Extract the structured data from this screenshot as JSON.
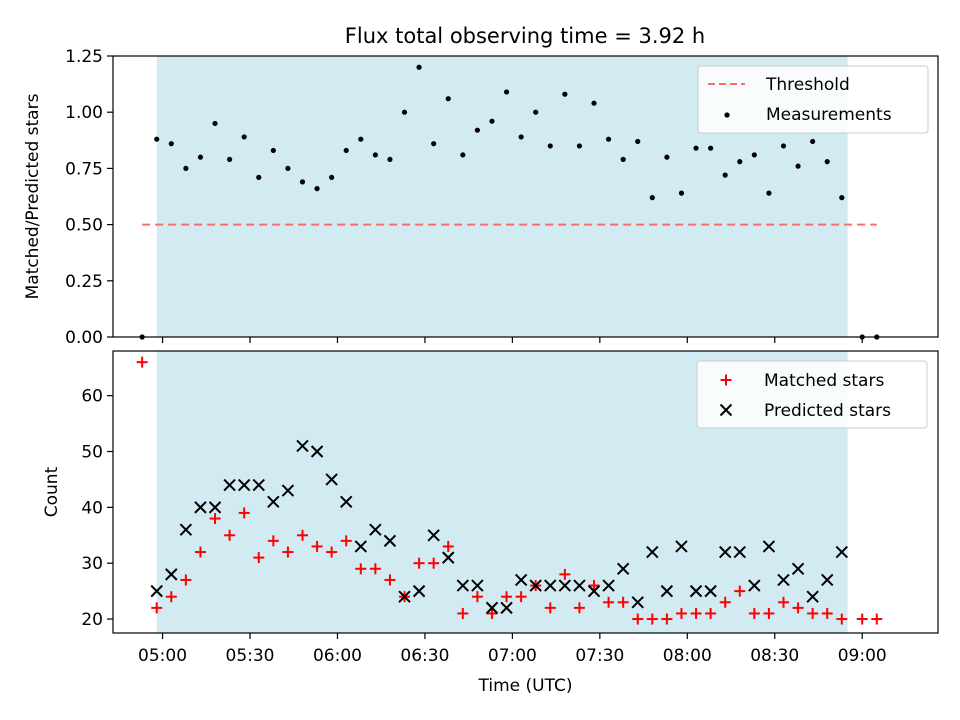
{
  "figure": {
    "title": "Flux total observing time = 3.92 h",
    "xlabel": "Time (UTC)"
  },
  "colors": {
    "shade": "#add8e6",
    "threshold": "#ff6b6b",
    "measurements": "#000000",
    "matched": "#ff0000",
    "predicted": "#000000"
  },
  "chart_data": [
    {
      "type": "scatter",
      "ylabel": "Matched/Predicted stars",
      "ylim": [
        0,
        1.25
      ],
      "xlim": [
        "04:43",
        "09:26"
      ],
      "yticks": [
        "0.00",
        "0.25",
        "0.50",
        "0.75",
        "1.00",
        "1.25"
      ],
      "shaded_interval": [
        "04:58",
        "08:55"
      ],
      "legend_position": "top-right",
      "threshold": {
        "name": "Threshold",
        "value": 0.5,
        "x_range": [
          "04:53",
          "09:05"
        ]
      },
      "series": [
        {
          "name": "Measurements",
          "points": [
            [
              "04:53",
              0.0
            ],
            [
              "04:58",
              0.88
            ],
            [
              "05:03",
              0.86
            ],
            [
              "05:08",
              0.75
            ],
            [
              "05:13",
              0.8
            ],
            [
              "05:18",
              0.95
            ],
            [
              "05:23",
              0.79
            ],
            [
              "05:28",
              0.89
            ],
            [
              "05:33",
              0.71
            ],
            [
              "05:38",
              0.83
            ],
            [
              "05:43",
              0.75
            ],
            [
              "05:48",
              0.69
            ],
            [
              "05:53",
              0.66
            ],
            [
              "05:58",
              0.71
            ],
            [
              "06:03",
              0.83
            ],
            [
              "06:08",
              0.88
            ],
            [
              "06:13",
              0.81
            ],
            [
              "06:18",
              0.79
            ],
            [
              "06:23",
              1.0
            ],
            [
              "06:28",
              1.2
            ],
            [
              "06:33",
              0.86
            ],
            [
              "06:38",
              1.06
            ],
            [
              "06:43",
              0.81
            ],
            [
              "06:48",
              0.92
            ],
            [
              "06:53",
              0.96
            ],
            [
              "06:58",
              1.09
            ],
            [
              "07:03",
              0.89
            ],
            [
              "07:08",
              1.0
            ],
            [
              "07:13",
              0.85
            ],
            [
              "07:18",
              1.08
            ],
            [
              "07:23",
              0.85
            ],
            [
              "07:28",
              1.04
            ],
            [
              "07:33",
              0.88
            ],
            [
              "07:38",
              0.79
            ],
            [
              "07:43",
              0.87
            ],
            [
              "07:48",
              0.62
            ],
            [
              "07:53",
              0.8
            ],
            [
              "07:58",
              0.64
            ],
            [
              "08:03",
              0.84
            ],
            [
              "08:08",
              0.84
            ],
            [
              "08:13",
              0.72
            ],
            [
              "08:18",
              0.78
            ],
            [
              "08:23",
              0.81
            ],
            [
              "08:28",
              0.64
            ],
            [
              "08:33",
              0.85
            ],
            [
              "08:38",
              0.76
            ],
            [
              "08:43",
              0.87
            ],
            [
              "08:48",
              0.78
            ],
            [
              "08:53",
              0.62
            ],
            [
              "09:00",
              0.0
            ],
            [
              "09:05",
              0.0
            ]
          ]
        }
      ]
    },
    {
      "type": "scatter",
      "ylabel": "Count",
      "ylim": [
        17.5,
        68
      ],
      "yticks": [
        "20",
        "30",
        "40",
        "50",
        "60"
      ],
      "xticks": [
        "05:00",
        "05:30",
        "06:00",
        "06:30",
        "07:00",
        "07:30",
        "08:00",
        "08:30",
        "09:00"
      ],
      "shaded_interval": [
        "04:58",
        "08:55"
      ],
      "legend_position": "top-right",
      "series": [
        {
          "name": "Matched stars",
          "marker": "+",
          "points": [
            [
              "04:53",
              66
            ],
            [
              "04:58",
              22
            ],
            [
              "05:03",
              24
            ],
            [
              "05:08",
              27
            ],
            [
              "05:13",
              32
            ],
            [
              "05:18",
              38
            ],
            [
              "05:23",
              35
            ],
            [
              "05:28",
              39
            ],
            [
              "05:33",
              31
            ],
            [
              "05:38",
              34
            ],
            [
              "05:43",
              32
            ],
            [
              "05:48",
              35
            ],
            [
              "05:53",
              33
            ],
            [
              "05:58",
              32
            ],
            [
              "06:03",
              34
            ],
            [
              "06:08",
              29
            ],
            [
              "06:13",
              29
            ],
            [
              "06:18",
              27
            ],
            [
              "06:23",
              24
            ],
            [
              "06:28",
              30
            ],
            [
              "06:33",
              30
            ],
            [
              "06:38",
              33
            ],
            [
              "06:43",
              21
            ],
            [
              "06:48",
              24
            ],
            [
              "06:53",
              21
            ],
            [
              "06:58",
              24
            ],
            [
              "07:03",
              24
            ],
            [
              "07:08",
              26
            ],
            [
              "07:13",
              22
            ],
            [
              "07:18",
              28
            ],
            [
              "07:23",
              22
            ],
            [
              "07:28",
              26
            ],
            [
              "07:33",
              23
            ],
            [
              "07:38",
              23
            ],
            [
              "07:43",
              20
            ],
            [
              "07:48",
              20
            ],
            [
              "07:53",
              20
            ],
            [
              "07:58",
              21
            ],
            [
              "08:03",
              21
            ],
            [
              "08:08",
              21
            ],
            [
              "08:13",
              23
            ],
            [
              "08:18",
              25
            ],
            [
              "08:23",
              21
            ],
            [
              "08:28",
              21
            ],
            [
              "08:33",
              23
            ],
            [
              "08:38",
              22
            ],
            [
              "08:43",
              21
            ],
            [
              "08:48",
              21
            ],
            [
              "08:53",
              20
            ],
            [
              "09:00",
              20
            ],
            [
              "09:05",
              20
            ]
          ]
        },
        {
          "name": "Predicted stars",
          "marker": "x",
          "points": [
            [
              "04:58",
              25
            ],
            [
              "05:03",
              28
            ],
            [
              "05:08",
              36
            ],
            [
              "05:13",
              40
            ],
            [
              "05:18",
              40
            ],
            [
              "05:23",
              44
            ],
            [
              "05:28",
              44
            ],
            [
              "05:33",
              44
            ],
            [
              "05:38",
              41
            ],
            [
              "05:43",
              43
            ],
            [
              "05:48",
              51
            ],
            [
              "05:53",
              50
            ],
            [
              "05:58",
              45
            ],
            [
              "06:03",
              41
            ],
            [
              "06:08",
              33
            ],
            [
              "06:13",
              36
            ],
            [
              "06:18",
              34
            ],
            [
              "06:23",
              24
            ],
            [
              "06:28",
              25
            ],
            [
              "06:33",
              35
            ],
            [
              "06:38",
              31
            ],
            [
              "06:43",
              26
            ],
            [
              "06:48",
              26
            ],
            [
              "06:53",
              22
            ],
            [
              "06:58",
              22
            ],
            [
              "07:03",
              27
            ],
            [
              "07:08",
              26
            ],
            [
              "07:13",
              26
            ],
            [
              "07:18",
              26
            ],
            [
              "07:23",
              26
            ],
            [
              "07:28",
              25
            ],
            [
              "07:33",
              26
            ],
            [
              "07:38",
              29
            ],
            [
              "07:43",
              23
            ],
            [
              "07:48",
              32
            ],
            [
              "07:53",
              25
            ],
            [
              "07:58",
              33
            ],
            [
              "08:03",
              25
            ],
            [
              "08:08",
              25
            ],
            [
              "08:13",
              32
            ],
            [
              "08:18",
              32
            ],
            [
              "08:23",
              26
            ],
            [
              "08:28",
              33
            ],
            [
              "08:33",
              27
            ],
            [
              "08:38",
              29
            ],
            [
              "08:43",
              24
            ],
            [
              "08:48",
              27
            ],
            [
              "08:53",
              32
            ]
          ]
        }
      ]
    }
  ]
}
